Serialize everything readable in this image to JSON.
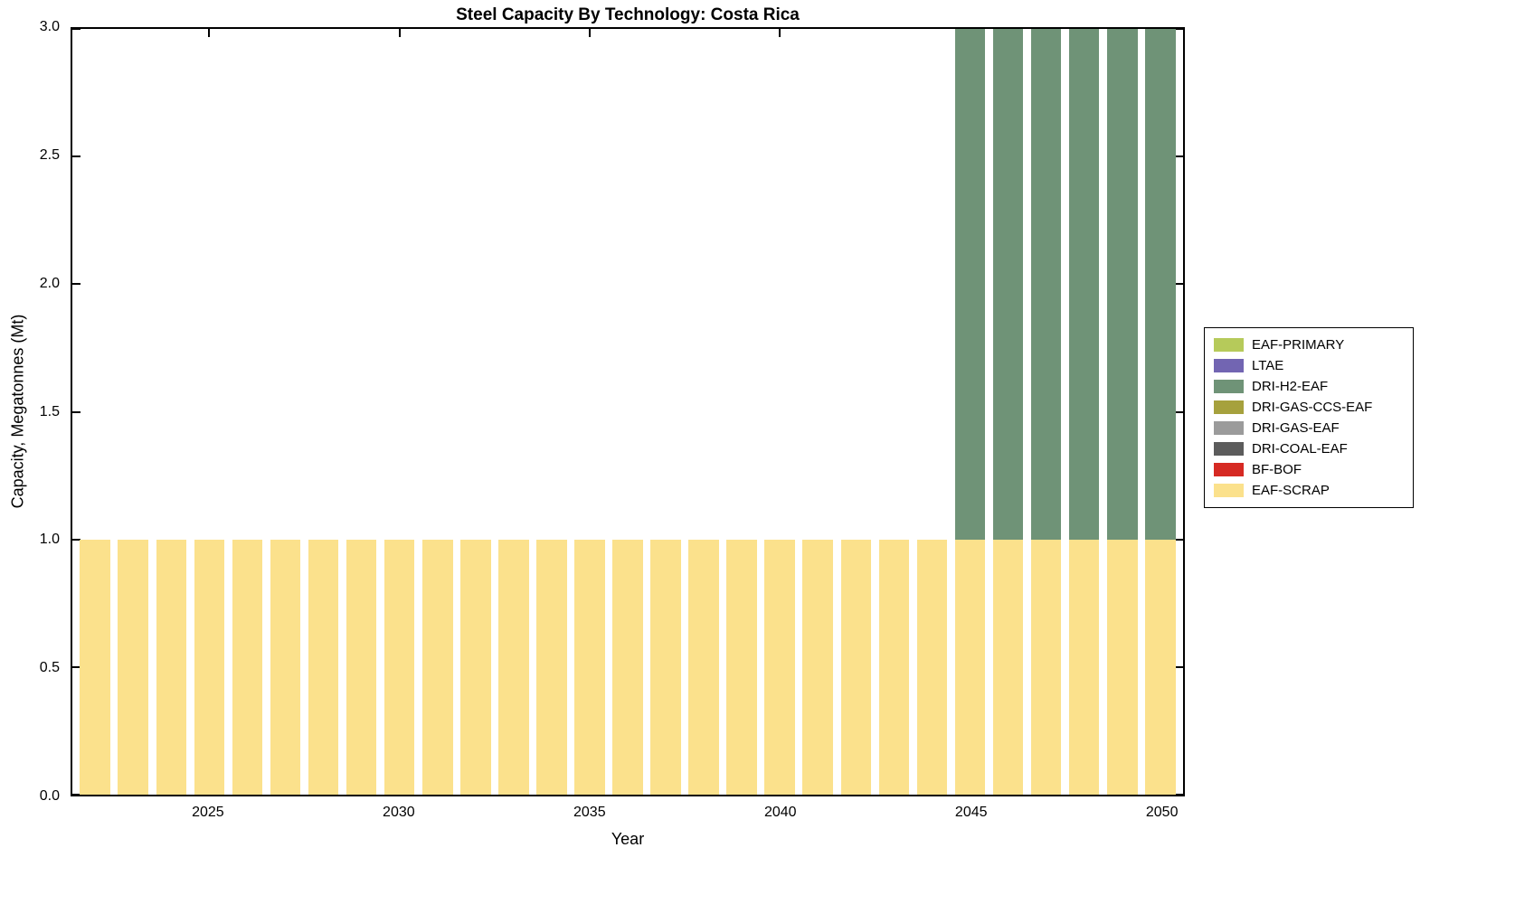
{
  "figure": {
    "background": "#ffffff",
    "axis_color": "#000000"
  },
  "chart_data": {
    "type": "bar",
    "stacked": true,
    "title": "Steel Capacity By Technology: Costa Rica",
    "xlabel": "Year",
    "ylabel": "Capacity, Megatonnes (Mt)",
    "xlim": [
      2021.4,
      2050.6
    ],
    "ylim": [
      0,
      3
    ],
    "xticks": [
      2025,
      2030,
      2035,
      2040,
      2045,
      2050
    ],
    "yticks": [
      0,
      0.5,
      1,
      1.5,
      2,
      2.5,
      3
    ],
    "ytick_labels": [
      "0.0",
      "0.5",
      "1.0",
      "1.5",
      "2.0",
      "2.5",
      "3.0"
    ],
    "bar_width_years": 0.8,
    "grid": false,
    "x": [
      2022,
      2023,
      2024,
      2025,
      2026,
      2027,
      2028,
      2029,
      2030,
      2031,
      2032,
      2033,
      2034,
      2035,
      2036,
      2037,
      2038,
      2039,
      2040,
      2041,
      2042,
      2043,
      2044,
      2045,
      2046,
      2047,
      2048,
      2049,
      2050
    ],
    "series": [
      {
        "name": "EAF-SCRAP",
        "color": "#fbe18c",
        "values": [
          1,
          1,
          1,
          1,
          1,
          1,
          1,
          1,
          1,
          1,
          1,
          1,
          1,
          1,
          1,
          1,
          1,
          1,
          1,
          1,
          1,
          1,
          1,
          1,
          1,
          1,
          1,
          1,
          1
        ]
      },
      {
        "name": "DRI-H2-EAF",
        "color": "#6f9377",
        "values": [
          0,
          0,
          0,
          0,
          0,
          0,
          0,
          0,
          0,
          0,
          0,
          0,
          0,
          0,
          0,
          0,
          0,
          0,
          0,
          0,
          0,
          0,
          0,
          2,
          2,
          2,
          2,
          2,
          2
        ]
      }
    ],
    "legend": {
      "position": "right-outside",
      "entries": [
        {
          "label": "EAF-PRIMARY",
          "color": "#b6ca5a"
        },
        {
          "label": "LTAE",
          "color": "#7265b2"
        },
        {
          "label": "DRI-H2-EAF",
          "color": "#6f9377"
        },
        {
          "label": "DRI-GAS-CCS-EAF",
          "color": "#a6a13d"
        },
        {
          "label": "DRI-GAS-EAF",
          "color": "#9b9b9b"
        },
        {
          "label": "DRI-COAL-EAF",
          "color": "#5c5c5c"
        },
        {
          "label": "BF-BOF",
          "color": "#d62a23"
        },
        {
          "label": "EAF-SCRAP",
          "color": "#fbe18c"
        }
      ]
    }
  }
}
